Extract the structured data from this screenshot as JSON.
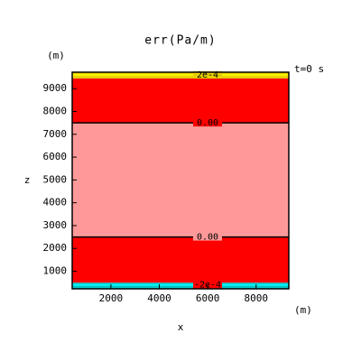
{
  "chart_data": {
    "type": "contour",
    "title": "err(Pa/m)",
    "y_unit": "(m)",
    "x_unit": "(m)",
    "time_label": "t=0 s",
    "xlabel": "x",
    "ylabel": "z",
    "xlim": [
      400,
      9350
    ],
    "ylim": [
      230,
      9720
    ],
    "xticks": [
      2000,
      4000,
      6000,
      8000
    ],
    "yticks": [
      1000,
      2000,
      3000,
      4000,
      5000,
      6000,
      7000,
      8000,
      9000
    ],
    "bands": [
      {
        "from": 230,
        "to": 500,
        "color": "#00c8c8"
      },
      {
        "from": 500,
        "to": 2500,
        "color": "#ff0000"
      },
      {
        "from": 2500,
        "to": 7500,
        "color": "#ff9999"
      },
      {
        "from": 7500,
        "to": 9450,
        "color": "#ff0000"
      },
      {
        "from": 9450,
        "to": 9720,
        "color": "#e8d000"
      }
    ],
    "contours": [
      {
        "z": 400,
        "label": "-2e-4",
        "color": "#00ffff"
      },
      {
        "z": 2500,
        "label": "0.00",
        "color": "#000000"
      },
      {
        "z": 7500,
        "label": "0.00",
        "color": "#000000"
      },
      {
        "z": 9600,
        "label": "2e-4",
        "color": "#ffff00"
      }
    ]
  }
}
